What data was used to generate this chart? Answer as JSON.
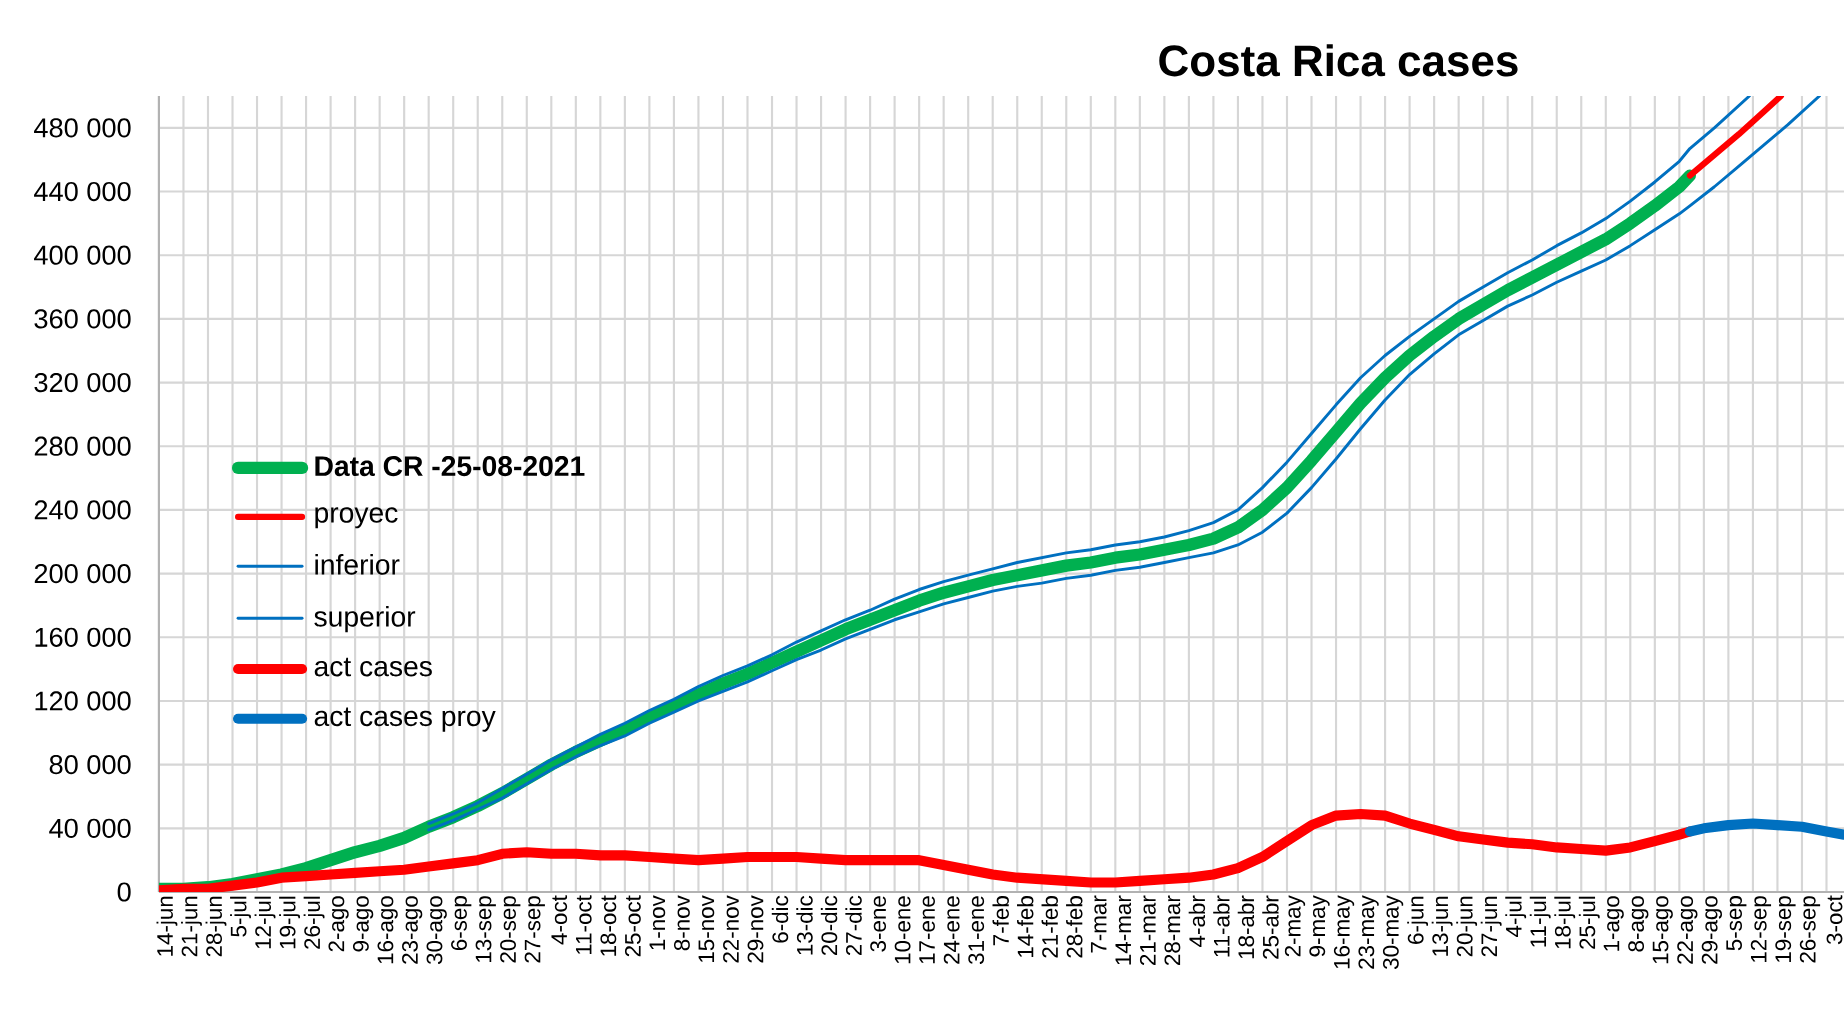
{
  "chart_data": {
    "type": "line",
    "title": "Costa Rica cases",
    "xlim": [
      "2020-06-14",
      "2021-10-08"
    ],
    "xticks": [
      {
        "value": "2020-06-14",
        "label": "14-jun"
      },
      {
        "value": "2020-06-21",
        "label": "21-jun"
      },
      {
        "value": "2020-06-28",
        "label": "28-jun"
      },
      {
        "value": "2020-07-05",
        "label": "5-jul"
      },
      {
        "value": "2020-07-12",
        "label": "12-jul"
      },
      {
        "value": "2020-07-19",
        "label": "19-jul"
      },
      {
        "value": "2020-07-26",
        "label": "26-jul"
      },
      {
        "value": "2020-08-02",
        "label": "2-ago"
      },
      {
        "value": "2020-08-09",
        "label": "9-ago"
      },
      {
        "value": "2020-08-16",
        "label": "16-ago"
      },
      {
        "value": "2020-08-23",
        "label": "23-ago"
      },
      {
        "value": "2020-08-30",
        "label": "30-ago"
      },
      {
        "value": "2020-09-06",
        "label": "6-sep"
      },
      {
        "value": "2020-09-13",
        "label": "13-sep"
      },
      {
        "value": "2020-09-20",
        "label": "20-sep"
      },
      {
        "value": "2020-09-27",
        "label": "27-sep"
      },
      {
        "value": "2020-10-04",
        "label": "4-oct"
      },
      {
        "value": "2020-10-11",
        "label": "11-oct"
      },
      {
        "value": "2020-10-18",
        "label": "18-oct"
      },
      {
        "value": "2020-10-25",
        "label": "25-oct"
      },
      {
        "value": "2020-11-01",
        "label": "1-nov"
      },
      {
        "value": "2020-11-08",
        "label": "8-nov"
      },
      {
        "value": "2020-11-15",
        "label": "15-nov"
      },
      {
        "value": "2020-11-22",
        "label": "22-nov"
      },
      {
        "value": "2020-11-29",
        "label": "29-nov"
      },
      {
        "value": "2020-12-06",
        "label": "6-dic"
      },
      {
        "value": "2020-12-13",
        "label": "13-dic"
      },
      {
        "value": "2020-12-20",
        "label": "20-dic"
      },
      {
        "value": "2020-12-27",
        "label": "27-dic"
      },
      {
        "value": "2021-01-03",
        "label": "3-ene"
      },
      {
        "value": "2021-01-10",
        "label": "10-ene"
      },
      {
        "value": "2021-01-17",
        "label": "17-ene"
      },
      {
        "value": "2021-01-24",
        "label": "24-ene"
      },
      {
        "value": "2021-01-31",
        "label": "31-ene"
      },
      {
        "value": "2021-02-07",
        "label": "7-feb"
      },
      {
        "value": "2021-02-14",
        "label": "14-feb"
      },
      {
        "value": "2021-02-21",
        "label": "21-feb"
      },
      {
        "value": "2021-02-28",
        "label": "28-feb"
      },
      {
        "value": "2021-03-07",
        "label": "7-mar"
      },
      {
        "value": "2021-03-14",
        "label": "14-mar"
      },
      {
        "value": "2021-03-21",
        "label": "21-mar"
      },
      {
        "value": "2021-03-28",
        "label": "28-mar"
      },
      {
        "value": "2021-04-04",
        "label": "4-abr"
      },
      {
        "value": "2021-04-11",
        "label": "11-abr"
      },
      {
        "value": "2021-04-18",
        "label": "18-abr"
      },
      {
        "value": "2021-04-25",
        "label": "25-abr"
      },
      {
        "value": "2021-05-02",
        "label": "2-may"
      },
      {
        "value": "2021-05-09",
        "label": "9-may"
      },
      {
        "value": "2021-05-16",
        "label": "16-may"
      },
      {
        "value": "2021-05-23",
        "label": "23-may"
      },
      {
        "value": "2021-05-30",
        "label": "30-may"
      },
      {
        "value": "2021-06-06",
        "label": "6-jun"
      },
      {
        "value": "2021-06-13",
        "label": "13-jun"
      },
      {
        "value": "2021-06-20",
        "label": "20-jun"
      },
      {
        "value": "2021-06-27",
        "label": "27-jun"
      },
      {
        "value": "2021-07-04",
        "label": "4-jul"
      },
      {
        "value": "2021-07-11",
        "label": "11-jul"
      },
      {
        "value": "2021-07-18",
        "label": "18-jul"
      },
      {
        "value": "2021-07-25",
        "label": "25-jul"
      },
      {
        "value": "2021-08-01",
        "label": "1-ago"
      },
      {
        "value": "2021-08-08",
        "label": "8-ago"
      },
      {
        "value": "2021-08-15",
        "label": "15-ago"
      },
      {
        "value": "2021-08-22",
        "label": "22-ago"
      },
      {
        "value": "2021-08-29",
        "label": "29-ago"
      },
      {
        "value": "2021-09-05",
        "label": "5-sep"
      },
      {
        "value": "2021-09-12",
        "label": "12-sep"
      },
      {
        "value": "2021-09-19",
        "label": "19-sep"
      },
      {
        "value": "2021-09-26",
        "label": "26-sep"
      },
      {
        "value": "2021-10-03",
        "label": "3-oct"
      }
    ],
    "ylim": [
      0,
      500000
    ],
    "yticks": [
      0,
      {
        "value": 40000,
        "label": "40 000"
      },
      {
        "value": 80000,
        "label": "80 000"
      },
      {
        "value": 120000,
        "label": "120 000"
      },
      {
        "value": 160000,
        "label": "160 000"
      },
      {
        "value": 200000,
        "label": "200 000"
      },
      {
        "value": 240000,
        "label": "240 000"
      },
      {
        "value": 280000,
        "label": "280 000"
      },
      {
        "value": 320000,
        "label": "320 000"
      },
      {
        "value": 360000,
        "label": "360 000"
      },
      {
        "value": 400000,
        "label": "400 000"
      },
      {
        "value": 440000,
        "label": "440 000"
      },
      {
        "value": 480000,
        "label": "480 000"
      }
    ],
    "grid": true,
    "legend": "left",
    "series": [
      {
        "name": "**Data CR -25-08-2021**",
        "color": "#00b050",
        "x": [
          "2020-06-14",
          "2020-06-21",
          "2020-06-28",
          "2020-07-05",
          "2020-07-12",
          "2020-07-19",
          "2020-07-26",
          "2020-08-02",
          "2020-08-09",
          "2020-08-16",
          "2020-08-23",
          "2020-08-30",
          "2020-09-06",
          "2020-09-13",
          "2020-09-20",
          "2020-09-27",
          "2020-10-04",
          "2020-10-11",
          "2020-10-18",
          "2020-10-25",
          "2020-11-01",
          "2020-11-08",
          "2020-11-15",
          "2020-11-22",
          "2020-11-29",
          "2020-12-06",
          "2020-12-13",
          "2020-12-20",
          "2020-12-27",
          "2021-01-03",
          "2021-01-10",
          "2021-01-17",
          "2021-01-24",
          "2021-01-31",
          "2021-02-07",
          "2021-02-14",
          "2021-02-21",
          "2021-02-28",
          "2021-03-07",
          "2021-03-14",
          "2021-03-21",
          "2021-03-28",
          "2021-04-04",
          "2021-04-11",
          "2021-04-18",
          "2021-04-25",
          "2021-05-02",
          "2021-05-09",
          "2021-05-16",
          "2021-05-23",
          "2021-05-30",
          "2021-06-06",
          "2021-06-13",
          "2021-06-20",
          "2021-06-27",
          "2021-07-04",
          "2021-07-11",
          "2021-07-18",
          "2021-07-25",
          "2021-08-01",
          "2021-08-08",
          "2021-08-15",
          "2021-08-22",
          "2021-08-25"
        ],
        "values": [
          2000,
          2000,
          3000,
          5000,
          8000,
          11000,
          15000,
          20000,
          25000,
          29000,
          34000,
          41000,
          47000,
          54000,
          62000,
          71000,
          80000,
          88000,
          95000,
          102000,
          110000,
          117000,
          124000,
          131000,
          137000,
          144000,
          151000,
          158000,
          165000,
          171000,
          177000,
          183000,
          188000,
          192000,
          196000,
          199000,
          202000,
          205000,
          207000,
          210000,
          212000,
          215000,
          218000,
          222000,
          229000,
          240000,
          254000,
          271000,
          289000,
          307000,
          323000,
          337000,
          349000,
          360000,
          369000,
          378000,
          386000,
          394000,
          402000,
          410000,
          420000,
          431000,
          443000,
          450000
        ]
      },
      {
        "name": "proyec",
        "color": "#ff0000",
        "x": [
          "2021-08-25",
          "2021-09-01",
          "2021-09-08",
          "2021-09-15",
          "2021-09-20"
        ],
        "values": [
          450000,
          463000,
          476000,
          490000,
          500000
        ]
      },
      {
        "name": "inferior",
        "color": "#0070c0",
        "x": [
          "2020-08-30",
          "2020-09-06",
          "2020-09-13",
          "2020-09-20",
          "2020-09-27",
          "2020-10-04",
          "2020-10-11",
          "2020-10-18",
          "2020-10-25",
          "2020-11-01",
          "2020-11-08",
          "2020-11-15",
          "2020-11-22",
          "2020-11-29",
          "2020-12-06",
          "2020-12-13",
          "2020-12-20",
          "2020-12-27",
          "2021-01-03",
          "2021-01-10",
          "2021-01-17",
          "2021-01-24",
          "2021-01-31",
          "2021-02-07",
          "2021-02-14",
          "2021-02-21",
          "2021-02-28",
          "2021-03-07",
          "2021-03-14",
          "2021-03-21",
          "2021-03-28",
          "2021-04-04",
          "2021-04-11",
          "2021-04-18",
          "2021-04-25",
          "2021-05-02",
          "2021-05-09",
          "2021-05-16",
          "2021-05-23",
          "2021-05-30",
          "2021-06-06",
          "2021-06-13",
          "2021-06-20",
          "2021-06-27",
          "2021-07-04",
          "2021-07-11",
          "2021-07-18",
          "2021-07-25",
          "2021-08-01",
          "2021-08-08",
          "2021-08-15",
          "2021-08-22",
          "2021-08-25",
          "2021-09-01",
          "2021-09-08",
          "2021-09-15",
          "2021-09-22",
          "2021-10-01"
        ],
        "values": [
          39000,
          45000,
          52000,
          59000,
          68000,
          77000,
          85000,
          92000,
          98000,
          106000,
          113000,
          120000,
          126000,
          132000,
          139000,
          146000,
          152000,
          159000,
          165000,
          171000,
          176000,
          181000,
          185000,
          189000,
          192000,
          194000,
          197000,
          199000,
          202000,
          204000,
          207000,
          210000,
          213000,
          218000,
          226000,
          238000,
          254000,
          272000,
          291000,
          309000,
          325000,
          338000,
          350000,
          359000,
          368000,
          375000,
          383000,
          390000,
          397000,
          406000,
          416000,
          426000,
          431000,
          443000,
          456000,
          469000,
          482000,
          500000
        ]
      },
      {
        "name": "superior",
        "color": "#0070c0",
        "x": [
          "2020-08-30",
          "2020-09-06",
          "2020-09-13",
          "2020-09-20",
          "2020-09-27",
          "2020-10-04",
          "2020-10-11",
          "2020-10-18",
          "2020-10-25",
          "2020-11-01",
          "2020-11-08",
          "2020-11-15",
          "2020-11-22",
          "2020-11-29",
          "2020-12-06",
          "2020-12-13",
          "2020-12-20",
          "2020-12-27",
          "2021-01-03",
          "2021-01-10",
          "2021-01-17",
          "2021-01-24",
          "2021-01-31",
          "2021-02-07",
          "2021-02-14",
          "2021-02-21",
          "2021-02-28",
          "2021-03-07",
          "2021-03-14",
          "2021-03-21",
          "2021-03-28",
          "2021-04-04",
          "2021-04-11",
          "2021-04-18",
          "2021-04-25",
          "2021-05-02",
          "2021-05-09",
          "2021-05-16",
          "2021-05-23",
          "2021-05-30",
          "2021-06-06",
          "2021-06-13",
          "2021-06-20",
          "2021-06-27",
          "2021-07-04",
          "2021-07-11",
          "2021-07-18",
          "2021-07-25",
          "2021-08-01",
          "2021-08-08",
          "2021-08-15",
          "2021-08-22",
          "2021-08-25",
          "2021-09-01",
          "2021-09-11"
        ],
        "values": [
          43000,
          49000,
          56000,
          65000,
          74000,
          83000,
          91000,
          99000,
          106000,
          114000,
          121000,
          129000,
          136000,
          142000,
          149000,
          157000,
          164000,
          171000,
          177000,
          184000,
          190000,
          195000,
          199000,
          203000,
          207000,
          210000,
          213000,
          215000,
          218000,
          220000,
          223000,
          227000,
          232000,
          240000,
          254000,
          270000,
          288000,
          306000,
          323000,
          337000,
          349000,
          360000,
          371000,
          380000,
          389000,
          397000,
          406000,
          414000,
          423000,
          434000,
          446000,
          459000,
          467000,
          480000,
          500000
        ]
      },
      {
        "name": "act cases",
        "color": "#ff0000",
        "x": [
          "2020-06-14",
          "2020-06-21",
          "2020-06-28",
          "2020-07-05",
          "2020-07-12",
          "2020-07-19",
          "2020-07-26",
          "2020-08-02",
          "2020-08-09",
          "2020-08-16",
          "2020-08-23",
          "2020-08-30",
          "2020-09-06",
          "2020-09-13",
          "2020-09-20",
          "2020-09-27",
          "2020-10-04",
          "2020-10-11",
          "2020-10-18",
          "2020-10-25",
          "2020-11-01",
          "2020-11-08",
          "2020-11-15",
          "2020-11-22",
          "2020-11-29",
          "2020-12-06",
          "2020-12-13",
          "2020-12-20",
          "2020-12-27",
          "2021-01-03",
          "2021-01-10",
          "2021-01-17",
          "2021-01-24",
          "2021-01-31",
          "2021-02-07",
          "2021-02-14",
          "2021-02-21",
          "2021-02-28",
          "2021-03-07",
          "2021-03-14",
          "2021-03-21",
          "2021-03-28",
          "2021-04-04",
          "2021-04-11",
          "2021-04-18",
          "2021-04-25",
          "2021-05-02",
          "2021-05-09",
          "2021-05-16",
          "2021-05-23",
          "2021-05-30",
          "2021-06-06",
          "2021-06-13",
          "2021-06-20",
          "2021-06-27",
          "2021-07-04",
          "2021-07-11",
          "2021-07-18",
          "2021-07-25",
          "2021-08-01",
          "2021-08-08",
          "2021-08-15",
          "2021-08-22",
          "2021-08-25"
        ],
        "values": [
          1000,
          2000,
          2000,
          4000,
          6000,
          9000,
          10000,
          11000,
          12000,
          13000,
          14000,
          16000,
          18000,
          20000,
          24000,
          25000,
          24000,
          24000,
          23000,
          23000,
          22000,
          21000,
          20000,
          21000,
          22000,
          22000,
          22000,
          21000,
          20000,
          20000,
          20000,
          20000,
          17000,
          14000,
          11000,
          9000,
          8000,
          7000,
          6000,
          6000,
          7000,
          8000,
          9000,
          11000,
          15000,
          22000,
          32000,
          42000,
          48000,
          49000,
          48000,
          43000,
          39000,
          35000,
          33000,
          31000,
          30000,
          28000,
          27000,
          26000,
          28000,
          32000,
          36000,
          38000
        ]
      },
      {
        "name": "act cases proy",
        "color": "#0070c0",
        "x": [
          "2021-08-25",
          "2021-08-29",
          "2021-09-05",
          "2021-09-12",
          "2021-09-19",
          "2021-09-26",
          "2021-10-03",
          "2021-10-08"
        ],
        "values": [
          38000,
          40000,
          42000,
          43000,
          42000,
          41000,
          38000,
          36000
        ]
      }
    ]
  }
}
